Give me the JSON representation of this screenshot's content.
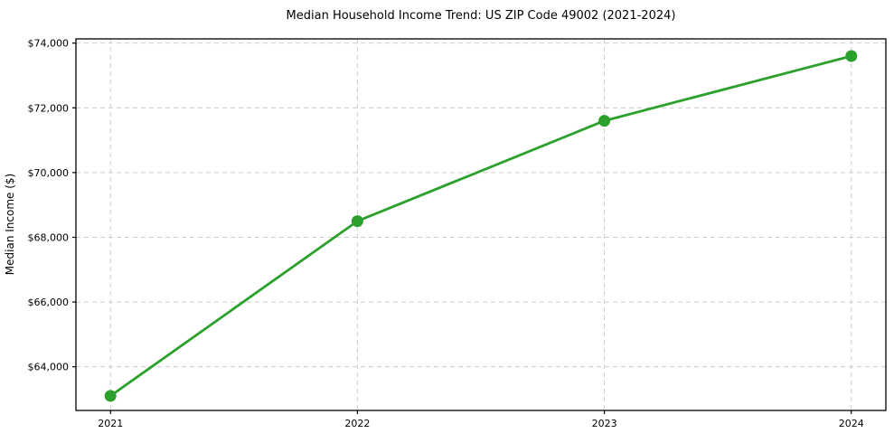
{
  "chart_data": {
    "type": "line",
    "title": "Median Household Income Trend: US ZIP Code 49002 (2021-2024)",
    "xlabel": "",
    "ylabel": "Median Income ($)",
    "x": [
      2021,
      2022,
      2023,
      2024
    ],
    "x_tick_labels": [
      "2021",
      "2022",
      "2023",
      "2024"
    ],
    "series": [
      {
        "name": "Median household income",
        "values": [
          63100,
          68500,
          71600,
          73600
        ],
        "color": "#2ca02c",
        "marker": "circle",
        "marker_radius": 6.5
      }
    ],
    "y_ticks": [
      64000,
      66000,
      68000,
      70000,
      72000,
      74000
    ],
    "y_tick_labels": [
      "$64,000",
      "$66,000",
      "$68,000",
      "$70,000",
      "$72,000",
      "$74,000"
    ],
    "xlim": [
      2020.86,
      2024.14
    ],
    "ylim": [
      62650,
      74130
    ],
    "grid": true,
    "grid_axes": "both",
    "grid_style": "dashed",
    "grid_color": "#cccccc",
    "background_color": "#ffffff",
    "border_color": "#000000",
    "legend": null
  }
}
